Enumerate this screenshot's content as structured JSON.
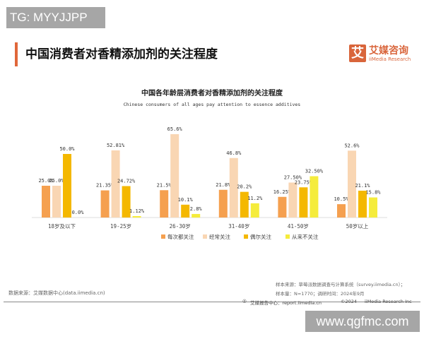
{
  "watermarks": {
    "top_left": "TG: MYYJJPP",
    "bottom_right": "www.qgfmc.com"
  },
  "header": {
    "title": "中国消费者对香精添加剂的关注程度",
    "logo": {
      "mark": "艾",
      "name": "艾媒咨询",
      "english": "iiMedia Research"
    }
  },
  "colors": {
    "accent": "#e0673a",
    "series": [
      "#f5a04f",
      "#f9d6b3",
      "#f4b800",
      "#f5ec3c"
    ]
  },
  "chart_data": {
    "type": "bar",
    "title": "中国各年龄层消费者对香精添加剂的关注程度",
    "subtitle": "Chinese consumers of all ages pay attention to essence additives",
    "categories": [
      "18岁及以下",
      "19-25岁",
      "26-30岁",
      "31-40岁",
      "41-50岁",
      "50岁以上"
    ],
    "series": [
      {
        "name": "每次都关注",
        "values": [
          25.0,
          21.35,
          21.5,
          21.8,
          16.25,
          10.5
        ],
        "labels": [
          "25.0%",
          "21.35%",
          "21.5%",
          "21.8%",
          "16.25%",
          "10.5%"
        ]
      },
      {
        "name": "经常关注",
        "values": [
          25.0,
          52.81,
          65.6,
          46.8,
          27.5,
          52.6
        ],
        "labels": [
          "25.0%",
          "52.81%",
          "65.6%",
          "46.8%",
          "27.50%",
          "52.6%"
        ]
      },
      {
        "name": "偶尔关注",
        "values": [
          50.0,
          24.72,
          10.1,
          20.2,
          23.75,
          21.1
        ],
        "labels": [
          "50.0%",
          "24.72%",
          "10.1%",
          "20.2%",
          "23.75%",
          "21.1%"
        ]
      },
      {
        "name": "从来不关注",
        "values": [
          0.0,
          1.12,
          2.8,
          11.2,
          32.5,
          15.8
        ],
        "labels": [
          "0.0%",
          "1.12%",
          "2.8%",
          "11.2%",
          "32.50%",
          "15.8%"
        ]
      }
    ],
    "ylim": [
      0,
      70
    ],
    "grid": false,
    "legend": "bottom"
  },
  "footer": {
    "source": "数据来源：艾媒数据中心(data.iimedia.cn)",
    "sample_source": "样本来源：草莓派数据调查与计算系统（survey.iimedia.cn）；",
    "sample_size": "样本量：N=1770；调研时间：2024年9月",
    "report_center": "艾媒报告中心：report.iimedia.cn",
    "copyright": "©2024",
    "company": "iiMedia Research  Inc"
  }
}
